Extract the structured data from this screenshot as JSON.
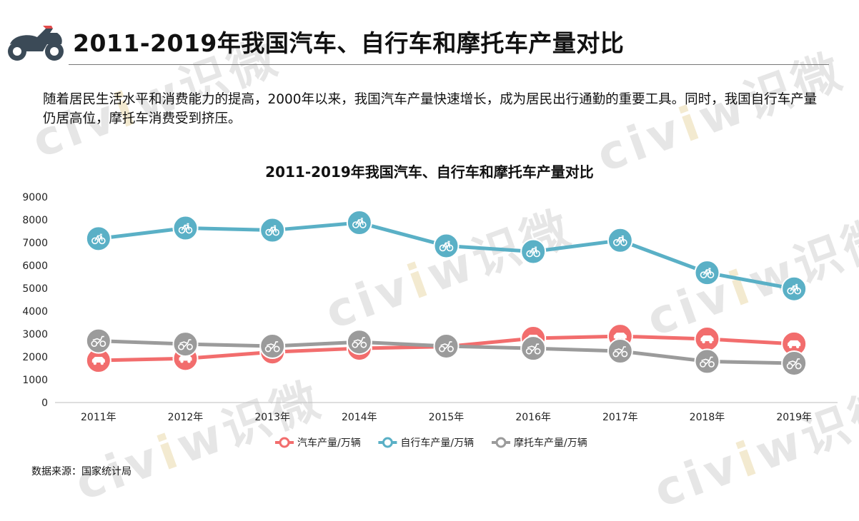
{
  "page": {
    "title": "2011-2019年我国汽车、自行车和摩托车产量对比",
    "intro": "随着居民生活水平和消费能力的提高，2000年以来，我国汽车产量快速增长，成为居民出行通勤的重要工具。同时，我国自行车产量仍居高位，摩托车消费受到挤压。",
    "source": "数据来源：国家统计局",
    "logo_icon": "motorcycle-icon",
    "watermark_text": "civiw识微"
  },
  "chart_data": {
    "type": "line",
    "title": "2011-2019年我国汽车、自行车和摩托车产量对比",
    "categories": [
      "2011年",
      "2012年",
      "2013年",
      "2014年",
      "2015年",
      "2016年",
      "2017年",
      "2018年",
      "2019年"
    ],
    "ylim": [
      0,
      9000
    ],
    "yticks": [
      "0",
      "1000",
      "2000",
      "3000",
      "4000",
      "5000",
      "6000",
      "7000",
      "8000",
      "9000"
    ],
    "grid": false,
    "legend_position": "bottom",
    "series": [
      {
        "name": "汽车产量/万辆",
        "color": "#f26d6d",
        "icon": "car-icon",
        "values": [
          1842,
          1927,
          2212,
          2373,
          2450,
          2812,
          2902,
          2782,
          2568
        ]
      },
      {
        "name": "自行车产量/万辆",
        "color": "#5ab0c6",
        "icon": "bicycle-icon",
        "values": [
          7176,
          7640,
          7545,
          7875,
          6861,
          6610,
          7100,
          5683,
          4978
        ]
      },
      {
        "name": "摩托车产量/万辆",
        "color": "#9b9b9b",
        "icon": "motorcycle-icon",
        "values": [
          2700,
          2560,
          2470,
          2650,
          2470,
          2370,
          2250,
          1800,
          1720
        ]
      }
    ]
  }
}
